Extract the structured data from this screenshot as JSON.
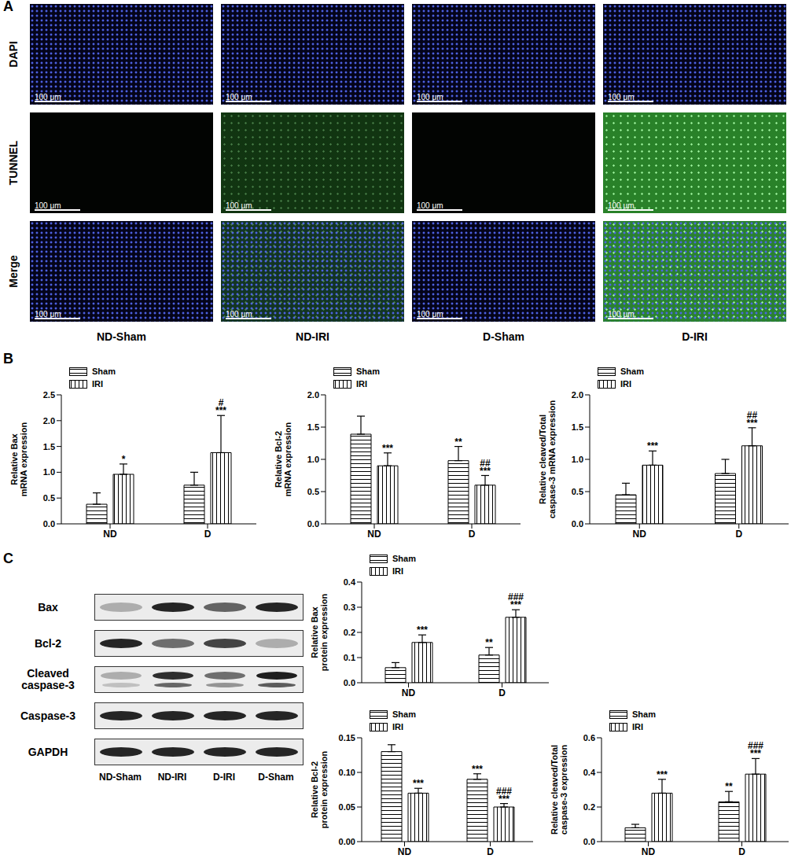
{
  "panel_labels": [
    "A",
    "B",
    "C"
  ],
  "microscopy": {
    "row_labels": [
      "DAPI",
      "TUNNEL",
      "Merge"
    ],
    "column_labels": [
      "ND-Sham",
      "ND-IRI",
      "D-Sham",
      "D-IRI"
    ],
    "scale_bar": "100 μm"
  },
  "blot": {
    "rows": [
      "Bax",
      "Bcl-2",
      "Cleaved caspase-3",
      "Caspase-3",
      "GAPDH"
    ],
    "lanes": [
      "ND-Sham",
      "ND-IRI",
      "D-IRI",
      "D-Sham"
    ]
  },
  "chart_data": [
    {
      "type": "bar",
      "y_label": "Relative Bax mRNA expression",
      "categories": [
        "ND",
        "D"
      ],
      "ylim": [
        0,
        2.5
      ],
      "yticks": [
        {
          "value": 0,
          "label": "0.0"
        },
        0.5,
        {
          "value": 1,
          "label": "1.0"
        },
        1.5,
        {
          "value": 2,
          "label": "2.0"
        },
        2.5
      ],
      "grid": false,
      "legend": "upper left",
      "series": [
        {
          "name": "Sham",
          "color": "#000000",
          "values": [
            0.38,
            0.75
          ],
          "errors": [
            0.22,
            0.25
          ],
          "annotations": [
            null,
            null
          ]
        },
        {
          "name": "IRI",
          "color": "#000000",
          "values": [
            0.96,
            1.38
          ],
          "errors": [
            0.2,
            0.72
          ],
          "annotations": [
            [
              "*"
            ],
            [
              "#",
              "***"
            ]
          ]
        }
      ]
    },
    {
      "type": "bar",
      "y_label": "Relative Bcl-2 mRNA expression",
      "categories": [
        "ND",
        "D"
      ],
      "ylim": [
        0,
        2
      ],
      "yticks": [
        {
          "value": 0,
          "label": "0.0"
        },
        0.5,
        {
          "value": 1,
          "label": "1.0"
        },
        1.5,
        {
          "value": 2,
          "label": "2.0"
        }
      ],
      "grid": false,
      "legend": "upper left",
      "series": [
        {
          "name": "Sham",
          "color": "#000000",
          "values": [
            1.39,
            0.98
          ],
          "errors": [
            0.28,
            0.22
          ],
          "annotations": [
            null,
            [
              "**"
            ]
          ]
        },
        {
          "name": "IRI",
          "color": "#000000",
          "values": [
            0.9,
            0.6
          ],
          "errors": [
            0.2,
            0.15
          ],
          "annotations": [
            [
              "***"
            ],
            [
              "##",
              "***"
            ]
          ]
        }
      ]
    },
    {
      "type": "bar",
      "y_label": "Relative cleaved/Total caspase-3 mRNA expression",
      "categories": [
        "ND",
        "D"
      ],
      "ylim": [
        0,
        2
      ],
      "yticks": [
        {
          "value": 0,
          "label": "0.0"
        },
        0.5,
        {
          "value": 1,
          "label": "1.0"
        },
        1.5,
        {
          "value": 2,
          "label": "2.0"
        }
      ],
      "grid": false,
      "legend": "upper left",
      "series": [
        {
          "name": "Sham",
          "color": "#000000",
          "values": [
            0.45,
            0.78
          ],
          "errors": [
            0.18,
            0.22
          ],
          "annotations": [
            null,
            null
          ]
        },
        {
          "name": "IRI",
          "color": "#000000",
          "values": [
            0.91,
            1.21
          ],
          "errors": [
            0.22,
            0.28
          ],
          "annotations": [
            [
              "***"
            ],
            [
              "##",
              "***"
            ]
          ]
        }
      ]
    },
    {
      "type": "bar",
      "y_label": "Relative Bax protein expression",
      "categories": [
        "ND",
        "D"
      ],
      "ylim": [
        0,
        0.4
      ],
      "yticks": [
        {
          "value": 0,
          "label": "0.0"
        },
        0.1,
        0.2,
        0.3,
        0.4
      ],
      "grid": false,
      "legend": "upper left",
      "series": [
        {
          "name": "Sham",
          "color": "#000000",
          "values": [
            0.06,
            0.11
          ],
          "errors": [
            0.02,
            0.03
          ],
          "annotations": [
            null,
            [
              "**"
            ]
          ]
        },
        {
          "name": "IRI",
          "color": "#000000",
          "values": [
            0.16,
            0.26
          ],
          "errors": [
            0.03,
            0.03
          ],
          "annotations": [
            [
              "***"
            ],
            [
              "###",
              "***"
            ]
          ]
        }
      ]
    },
    {
      "type": "bar",
      "y_label": "Relative Bcl-2 protein expression",
      "categories": [
        "ND",
        "D"
      ],
      "ylim": [
        0,
        0.15
      ],
      "yticks": [
        {
          "value": 0,
          "label": "0.00"
        },
        0.05,
        {
          "value": 0.1,
          "label": "0.10"
        },
        0.15
      ],
      "grid": false,
      "legend": "upper left",
      "series": [
        {
          "name": "Sham",
          "color": "#000000",
          "values": [
            0.13,
            0.09
          ],
          "errors": [
            0.01,
            0.008
          ],
          "annotations": [
            null,
            [
              "***"
            ]
          ]
        },
        {
          "name": "IRI",
          "color": "#000000",
          "values": [
            0.07,
            0.05
          ],
          "errors": [
            0.007,
            0.005
          ],
          "annotations": [
            [
              "***"
            ],
            [
              "###",
              "***"
            ]
          ]
        }
      ]
    },
    {
      "type": "bar",
      "y_label": "Relative cleaved/Total caspase-3 expression",
      "categories": [
        "ND",
        "D"
      ],
      "ylim": [
        0,
        0.6
      ],
      "yticks": [
        {
          "value": 0,
          "label": "0.0"
        },
        0.2,
        0.4,
        0.6
      ],
      "grid": false,
      "legend": "upper left",
      "series": [
        {
          "name": "Sham",
          "color": "#000000",
          "values": [
            0.08,
            0.23
          ],
          "errors": [
            0.02,
            0.06
          ],
          "annotations": [
            null,
            [
              "**"
            ]
          ]
        },
        {
          "name": "IRI",
          "color": "#000000",
          "values": [
            0.28,
            0.39
          ],
          "errors": [
            0.08,
            0.09
          ],
          "annotations": [
            [
              "***"
            ],
            [
              "###",
              "***"
            ]
          ]
        }
      ]
    }
  ]
}
